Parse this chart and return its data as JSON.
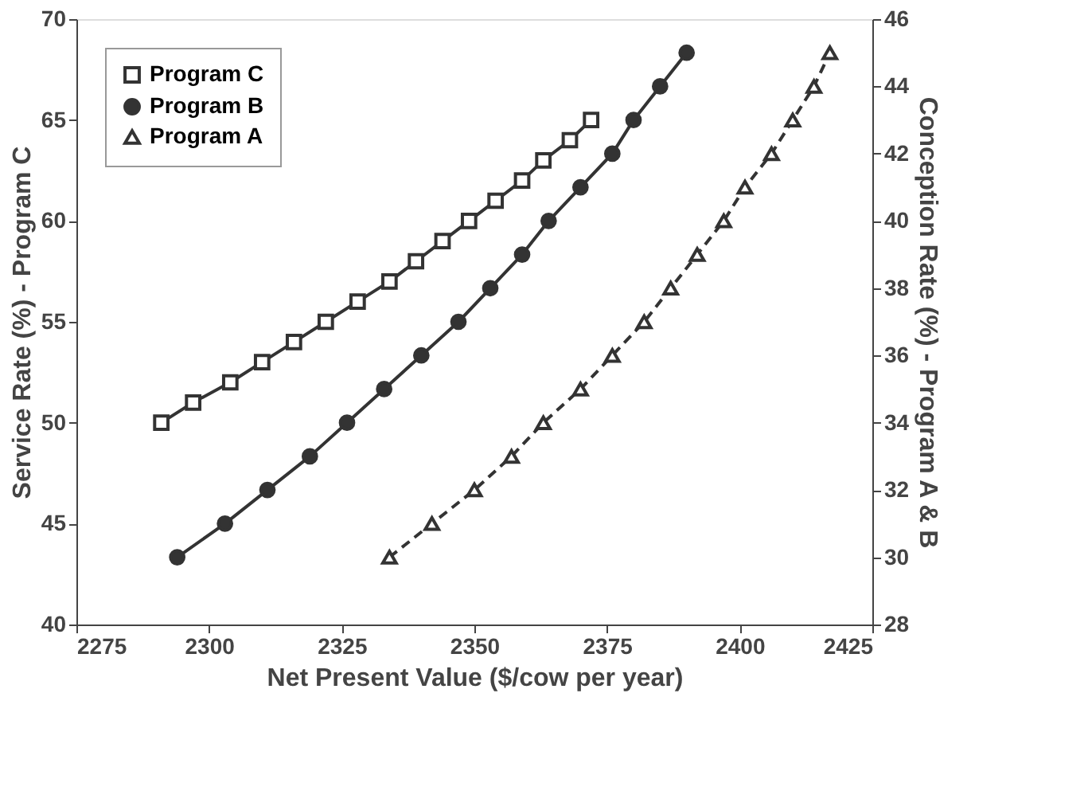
{
  "chart_data": {
    "type": "line",
    "xlabel": "Net Present Value ($/cow per year)",
    "ylabel": "Service Rate (%) - Program C",
    "y2label": "Conception Rate (%) - Program A & B",
    "xlim": [
      2275,
      2425
    ],
    "xticks": [
      2275,
      2300,
      2325,
      2350,
      2375,
      2400,
      2425
    ],
    "ylim": [
      40,
      70
    ],
    "yticks": [
      40,
      45,
      50,
      55,
      60,
      65,
      70
    ],
    "y2lim": [
      28,
      46
    ],
    "y2ticks": [
      28,
      30,
      32,
      34,
      36,
      38,
      40,
      42,
      44,
      46
    ],
    "grid": false,
    "legend": "top left",
    "series": [
      {
        "name": "Program C",
        "color": "#333333",
        "marker": "square",
        "line_style": "solid",
        "x": [
          2291,
          2297,
          2304,
          2310,
          2316,
          2322,
          2328,
          2334,
          2339,
          2344,
          2349,
          2354,
          2359,
          2363,
          2368,
          2372
        ],
        "values": [
          50,
          51,
          52,
          53,
          54,
          55,
          56,
          57,
          58,
          59,
          60,
          61,
          62,
          63,
          64,
          65
        ]
      },
      {
        "name": "Program B",
        "color": "#333333",
        "marker": "circle",
        "line_style": "solid",
        "axis": "y2",
        "x": [
          2294,
          2303,
          2311,
          2319,
          2326,
          2333,
          2340,
          2347,
          2353,
          2359,
          2364,
          2370,
          2376,
          2380,
          2385,
          2390
        ],
        "values": [
          30,
          31,
          32,
          33,
          34,
          35,
          36,
          37,
          38,
          39,
          40,
          41,
          42,
          43,
          44,
          45
        ]
      },
      {
        "name": "Program A",
        "color": "#333333",
        "marker": "triangle",
        "line_style": "dashed",
        "axis": "y2",
        "x": [
          2334,
          2342,
          2350,
          2357,
          2363,
          2370,
          2376,
          2382,
          2387,
          2392,
          2397,
          2401,
          2406,
          2410,
          2414,
          2417
        ],
        "values": [
          30,
          31,
          32,
          33,
          34,
          35,
          36,
          37,
          38,
          39,
          40,
          41,
          42,
          43,
          44,
          45
        ]
      }
    ]
  }
}
